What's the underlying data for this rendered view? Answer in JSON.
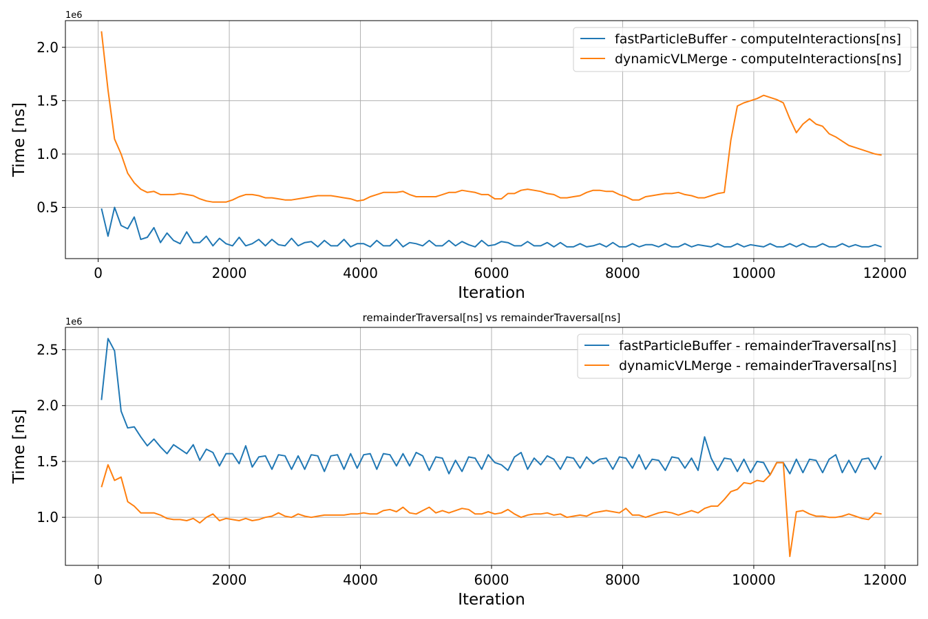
{
  "chart_data": [
    {
      "type": "line",
      "title": "",
      "xlabel": "Iteration",
      "ylabel": "Time [ns]",
      "y_exponent_label": "1e6",
      "xlim": [
        -500,
        12500
      ],
      "ylim": [
        0.02,
        2.25
      ],
      "x_ticks": [
        0,
        2000,
        4000,
        6000,
        8000,
        10000,
        12000
      ],
      "y_ticks": [
        0.5,
        1.0,
        1.5,
        2.0
      ],
      "x_tick_labels": [
        "0",
        "2000",
        "4000",
        "6000",
        "8000",
        "10000",
        "12000"
      ],
      "y_tick_labels": [
        "0.5",
        "1.0",
        "1.5",
        "2.0"
      ],
      "grid": true,
      "legend_position": "top-right",
      "x": [
        50,
        150,
        250,
        350,
        450,
        550,
        650,
        750,
        850,
        950,
        1050,
        1150,
        1250,
        1350,
        1450,
        1550,
        1650,
        1750,
        1850,
        1950,
        2050,
        2150,
        2250,
        2350,
        2450,
        2550,
        2650,
        2750,
        2850,
        2950,
        3050,
        3150,
        3250,
        3350,
        3450,
        3550,
        3650,
        3750,
        3850,
        3950,
        4050,
        4150,
        4250,
        4350,
        4450,
        4550,
        4650,
        4750,
        4850,
        4950,
        5050,
        5150,
        5250,
        5350,
        5450,
        5550,
        5650,
        5750,
        5850,
        5950,
        6050,
        6150,
        6250,
        6350,
        6450,
        6550,
        6650,
        6750,
        6850,
        6950,
        7050,
        7150,
        7250,
        7350,
        7450,
        7550,
        7650,
        7750,
        7850,
        7950,
        8050,
        8150,
        8250,
        8350,
        8450,
        8550,
        8650,
        8750,
        8850,
        8950,
        9050,
        9150,
        9250,
        9350,
        9450,
        9550,
        9650,
        9750,
        9850,
        9950,
        10050,
        10150,
        10250,
        10350,
        10450,
        10550,
        10650,
        10750,
        10850,
        10950,
        11050,
        11150,
        11250,
        11350,
        11450,
        11550,
        11650,
        11750,
        11850,
        11950
      ],
      "series": [
        {
          "name": "fastParticleBuffer - computeInteractions[ns]",
          "color": "#1f77b4",
          "values": [
            0.49,
            0.23,
            0.5,
            0.33,
            0.3,
            0.41,
            0.2,
            0.22,
            0.31,
            0.17,
            0.26,
            0.19,
            0.16,
            0.27,
            0.17,
            0.17,
            0.23,
            0.14,
            0.21,
            0.16,
            0.14,
            0.22,
            0.14,
            0.16,
            0.2,
            0.14,
            0.2,
            0.15,
            0.14,
            0.21,
            0.14,
            0.17,
            0.18,
            0.13,
            0.19,
            0.14,
            0.14,
            0.2,
            0.13,
            0.16,
            0.16,
            0.13,
            0.19,
            0.14,
            0.14,
            0.2,
            0.13,
            0.17,
            0.16,
            0.14,
            0.19,
            0.14,
            0.14,
            0.19,
            0.14,
            0.18,
            0.15,
            0.13,
            0.19,
            0.14,
            0.15,
            0.18,
            0.17,
            0.14,
            0.14,
            0.18,
            0.14,
            0.14,
            0.17,
            0.13,
            0.17,
            0.13,
            0.13,
            0.16,
            0.13,
            0.14,
            0.16,
            0.13,
            0.17,
            0.13,
            0.13,
            0.16,
            0.13,
            0.15,
            0.15,
            0.13,
            0.16,
            0.13,
            0.13,
            0.16,
            0.13,
            0.15,
            0.14,
            0.13,
            0.16,
            0.13,
            0.13,
            0.16,
            0.13,
            0.15,
            0.14,
            0.13,
            0.16,
            0.13,
            0.13,
            0.16,
            0.13,
            0.16,
            0.13,
            0.13,
            0.16,
            0.13,
            0.13,
            0.16,
            0.13,
            0.15,
            0.13,
            0.13,
            0.15,
            0.13
          ]
        },
        {
          "name": "dynamicVLMerge - computeInteractions[ns]",
          "color": "#ff7f0e",
          "values": [
            2.15,
            1.6,
            1.14,
            1.0,
            0.82,
            0.73,
            0.67,
            0.64,
            0.65,
            0.62,
            0.62,
            0.62,
            0.63,
            0.62,
            0.61,
            0.58,
            0.56,
            0.55,
            0.55,
            0.55,
            0.57,
            0.6,
            0.62,
            0.62,
            0.61,
            0.59,
            0.59,
            0.58,
            0.57,
            0.57,
            0.58,
            0.59,
            0.6,
            0.61,
            0.61,
            0.61,
            0.6,
            0.59,
            0.58,
            0.56,
            0.57,
            0.6,
            0.62,
            0.64,
            0.64,
            0.64,
            0.65,
            0.62,
            0.6,
            0.6,
            0.6,
            0.6,
            0.62,
            0.64,
            0.64,
            0.66,
            0.65,
            0.64,
            0.62,
            0.62,
            0.58,
            0.58,
            0.63,
            0.63,
            0.66,
            0.67,
            0.66,
            0.65,
            0.63,
            0.62,
            0.59,
            0.59,
            0.6,
            0.61,
            0.64,
            0.66,
            0.66,
            0.65,
            0.65,
            0.62,
            0.6,
            0.57,
            0.57,
            0.6,
            0.61,
            0.62,
            0.63,
            0.63,
            0.64,
            0.62,
            0.61,
            0.59,
            0.59,
            0.61,
            0.63,
            0.64,
            1.13,
            1.45,
            1.48,
            1.5,
            1.52,
            1.55,
            1.53,
            1.51,
            1.48,
            1.33,
            1.2,
            1.28,
            1.33,
            1.28,
            1.26,
            1.19,
            1.16,
            1.12,
            1.08,
            1.06,
            1.04,
            1.02,
            1.0,
            0.99
          ]
        }
      ]
    },
    {
      "type": "line",
      "title": "remainderTraversal[ns] vs remainderTraversal[ns]",
      "xlabel": "Iteration",
      "ylabel": "Time [ns]",
      "y_exponent_label": "1e6",
      "xlim": [
        -500,
        12500
      ],
      "ylim": [
        0.57,
        2.7
      ],
      "x_ticks": [
        0,
        2000,
        4000,
        6000,
        8000,
        10000,
        12000
      ],
      "y_ticks": [
        1.0,
        1.5,
        2.0,
        2.5
      ],
      "x_tick_labels": [
        "0",
        "2000",
        "4000",
        "6000",
        "8000",
        "10000",
        "12000"
      ],
      "y_tick_labels": [
        "1.0",
        "1.5",
        "2.0",
        "2.5"
      ],
      "grid": true,
      "legend_position": "top-right",
      "x": [
        50,
        150,
        250,
        350,
        450,
        550,
        650,
        750,
        850,
        950,
        1050,
        1150,
        1250,
        1350,
        1450,
        1550,
        1650,
        1750,
        1850,
        1950,
        2050,
        2150,
        2250,
        2350,
        2450,
        2550,
        2650,
        2750,
        2850,
        2950,
        3050,
        3150,
        3250,
        3350,
        3450,
        3550,
        3650,
        3750,
        3850,
        3950,
        4050,
        4150,
        4250,
        4350,
        4450,
        4550,
        4650,
        4750,
        4850,
        4950,
        5050,
        5150,
        5250,
        5350,
        5450,
        5550,
        5650,
        5750,
        5850,
        5950,
        6050,
        6150,
        6250,
        6350,
        6450,
        6550,
        6650,
        6750,
        6850,
        6950,
        7050,
        7150,
        7250,
        7350,
        7450,
        7550,
        7650,
        7750,
        7850,
        7950,
        8050,
        8150,
        8250,
        8350,
        8450,
        8550,
        8650,
        8750,
        8850,
        8950,
        9050,
        9150,
        9250,
        9350,
        9450,
        9550,
        9650,
        9750,
        9850,
        9950,
        10050,
        10150,
        10250,
        10350,
        10450,
        10550,
        10650,
        10750,
        10850,
        10950,
        11050,
        11150,
        11250,
        11350,
        11450,
        11550,
        11650,
        11750,
        11850,
        11950
      ],
      "series": [
        {
          "name": "fastParticleBuffer - remainderTraversal[ns]",
          "color": "#1f77b4",
          "values": [
            2.05,
            2.6,
            2.49,
            1.95,
            1.8,
            1.81,
            1.72,
            1.64,
            1.7,
            1.63,
            1.57,
            1.65,
            1.61,
            1.57,
            1.65,
            1.51,
            1.61,
            1.58,
            1.46,
            1.57,
            1.57,
            1.48,
            1.64,
            1.45,
            1.54,
            1.55,
            1.43,
            1.56,
            1.55,
            1.43,
            1.55,
            1.43,
            1.56,
            1.55,
            1.41,
            1.55,
            1.56,
            1.43,
            1.57,
            1.44,
            1.56,
            1.57,
            1.43,
            1.57,
            1.56,
            1.46,
            1.57,
            1.46,
            1.58,
            1.55,
            1.42,
            1.54,
            1.53,
            1.39,
            1.51,
            1.41,
            1.54,
            1.53,
            1.43,
            1.56,
            1.49,
            1.47,
            1.42,
            1.54,
            1.58,
            1.43,
            1.53,
            1.47,
            1.55,
            1.52,
            1.43,
            1.54,
            1.53,
            1.44,
            1.54,
            1.48,
            1.52,
            1.53,
            1.43,
            1.54,
            1.53,
            1.44,
            1.56,
            1.43,
            1.52,
            1.51,
            1.42,
            1.54,
            1.53,
            1.44,
            1.53,
            1.42,
            1.72,
            1.53,
            1.42,
            1.53,
            1.52,
            1.41,
            1.52,
            1.4,
            1.5,
            1.49,
            1.38,
            1.49,
            1.49,
            1.39,
            1.52,
            1.4,
            1.52,
            1.51,
            1.4,
            1.52,
            1.56,
            1.4,
            1.51,
            1.4,
            1.52,
            1.53,
            1.43,
            1.55
          ]
        },
        {
          "name": "dynamicVLMerge - remainderTraversal[ns]",
          "color": "#ff7f0e",
          "values": [
            1.27,
            1.47,
            1.33,
            1.36,
            1.14,
            1.1,
            1.04,
            1.04,
            1.04,
            1.02,
            0.99,
            0.98,
            0.98,
            0.97,
            0.99,
            0.95,
            1.0,
            1.03,
            0.97,
            0.99,
            0.98,
            0.97,
            0.99,
            0.97,
            0.98,
            1.0,
            1.01,
            1.04,
            1.01,
            1.0,
            1.03,
            1.01,
            1.0,
            1.01,
            1.02,
            1.02,
            1.02,
            1.02,
            1.03,
            1.03,
            1.04,
            1.03,
            1.03,
            1.06,
            1.07,
            1.05,
            1.09,
            1.04,
            1.03,
            1.06,
            1.09,
            1.04,
            1.06,
            1.04,
            1.06,
            1.08,
            1.07,
            1.03,
            1.03,
            1.05,
            1.03,
            1.04,
            1.07,
            1.03,
            1.0,
            1.02,
            1.03,
            1.03,
            1.04,
            1.02,
            1.03,
            1.0,
            1.01,
            1.02,
            1.01,
            1.04,
            1.05,
            1.06,
            1.05,
            1.04,
            1.08,
            1.02,
            1.02,
            1.0,
            1.02,
            1.04,
            1.05,
            1.04,
            1.02,
            1.04,
            1.06,
            1.04,
            1.08,
            1.1,
            1.1,
            1.16,
            1.23,
            1.25,
            1.31,
            1.3,
            1.33,
            1.32,
            1.38,
            1.49,
            1.49,
            0.65,
            1.05,
            1.06,
            1.03,
            1.01,
            1.01,
            1.0,
            1.0,
            1.01,
            1.03,
            1.01,
            0.99,
            0.98,
            1.04,
            1.03
          ]
        }
      ]
    }
  ]
}
